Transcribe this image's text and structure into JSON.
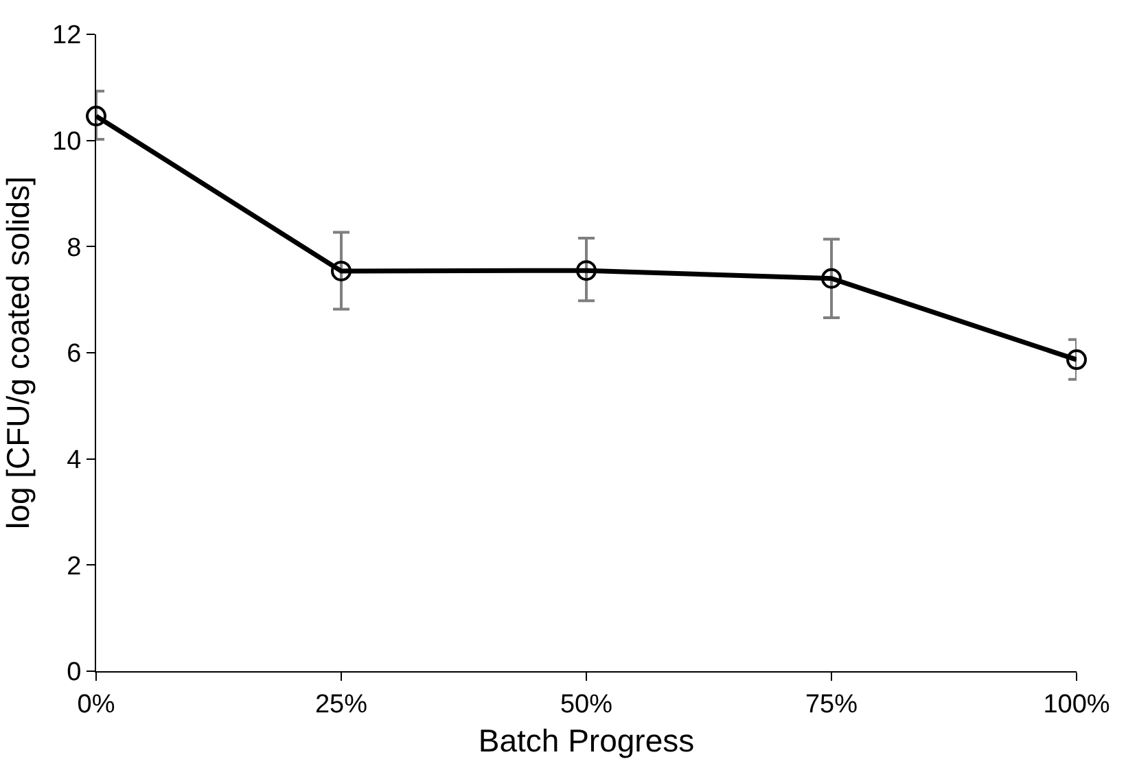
{
  "chart_data": {
    "type": "line",
    "xlabel": "Batch Progress",
    "ylabel": "log [CFU/g coated solids]",
    "categories": [
      "0%",
      "25%",
      "50%",
      "75%",
      "100%"
    ],
    "series": [
      {
        "color": "#000000",
        "values": [
          10.46,
          7.54,
          7.55,
          7.4,
          5.87
        ],
        "errors": [
          [
            10.02,
            10.93
          ],
          [
            6.82,
            8.27
          ],
          [
            6.98,
            8.16
          ],
          [
            6.66,
            8.14
          ],
          [
            5.5,
            6.25
          ]
        ]
      }
    ],
    "ylim": [
      0,
      12
    ],
    "yticks": [
      0,
      2,
      4,
      6,
      8,
      10,
      12
    ],
    "grid": false,
    "marker": "circle",
    "line_style": "solid"
  }
}
